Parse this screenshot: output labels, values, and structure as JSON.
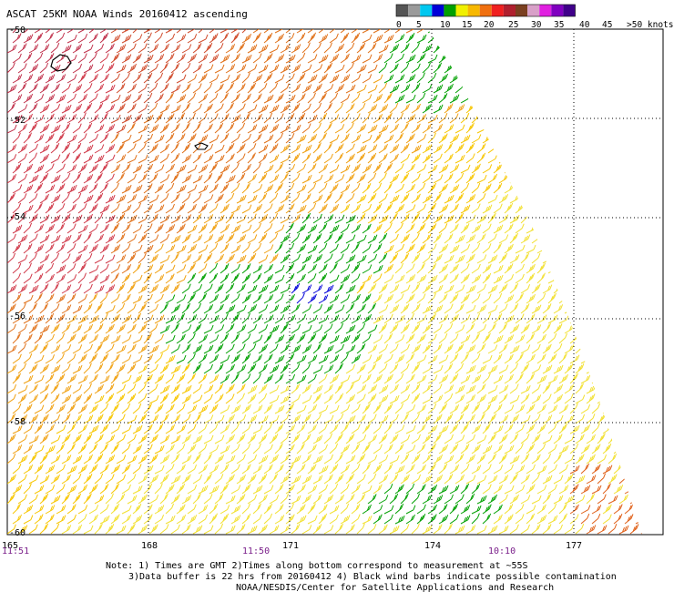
{
  "title": "ASCAT 25KM NOAA Winds 20160412 ascending",
  "legend": {
    "labels": [
      "0",
      "5",
      "10",
      "15",
      "20",
      "25",
      "30",
      "35",
      "40",
      "45",
      ">50 knots"
    ],
    "colors": [
      "#555555",
      "#9a9a9a",
      "#00c8f0",
      "#0000d8",
      "#00a000",
      "#f0f000",
      "#f7b800",
      "#f07010",
      "#f02020",
      "#b0202e",
      "#7a4020",
      "#d8a0c8",
      "#e020e0",
      "#8000c0",
      "#40008a"
    ]
  },
  "lat_ticks": [
    "-50",
    "-52",
    "-54",
    "-56",
    "-58",
    "-60"
  ],
  "lon_ticks": [
    "165",
    "168",
    "171",
    "174",
    "177"
  ],
  "time_labels": [
    "11:51",
    "11:50",
    "10:10"
  ],
  "notes": [
    "Note: 1) Times are GMT 2)Times along bottom correspond to measurement at ~55S",
    "3)Data buffer is 22 hrs from 20160412 4) Black wind barbs indicate possible contamination",
    "NOAA/NESDIS/Center for Satellite Applications and Research"
  ],
  "map_data": {
    "type": "scatterometer wind barb map",
    "units": "knots",
    "lat_range": [
      -60,
      -50
    ],
    "lon_range": [
      165,
      178
    ],
    "grid": true
  }
}
